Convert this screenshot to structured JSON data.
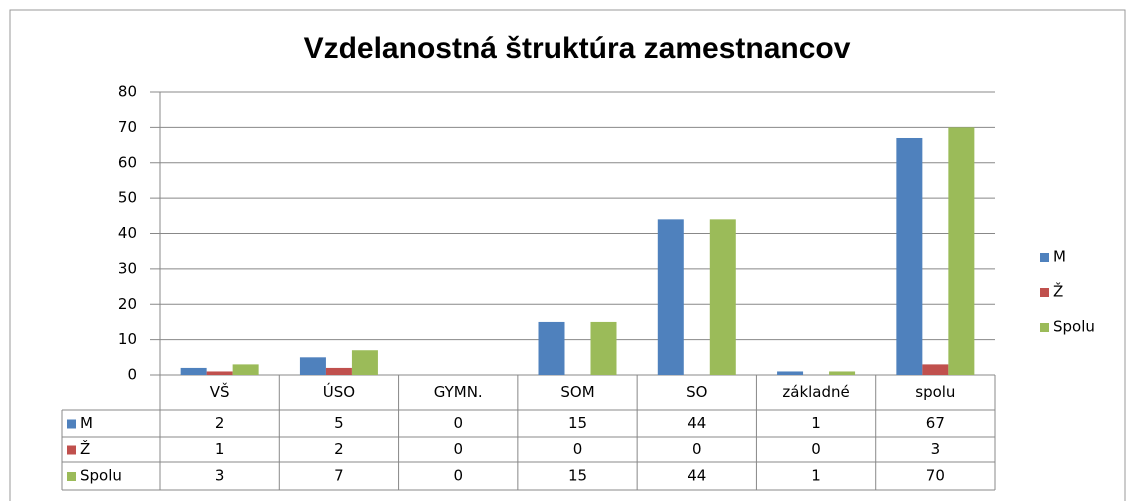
{
  "chart_data": {
    "type": "bar",
    "title": "Vzdelanostná štruktúra zamestnancov",
    "categories": [
      "VŠ",
      "ÚSO",
      "GYMN.",
      "SOM",
      "SO",
      "základné",
      "spolu"
    ],
    "series": [
      {
        "name": "M",
        "color": "#4f81bd",
        "values": [
          2,
          5,
          0,
          15,
          44,
          1,
          67
        ]
      },
      {
        "name": "Ž",
        "color": "#c0504d",
        "values": [
          1,
          2,
          0,
          0,
          0,
          0,
          3
        ]
      },
      {
        "name": "Spolu",
        "color": "#9bbb59",
        "values": [
          3,
          7,
          0,
          15,
          44,
          1,
          70
        ]
      }
    ],
    "ylim": [
      0,
      80
    ],
    "yticks": [
      0,
      10,
      20,
      30,
      40,
      50,
      60,
      70,
      80
    ],
    "grid": true,
    "legend": "right"
  }
}
